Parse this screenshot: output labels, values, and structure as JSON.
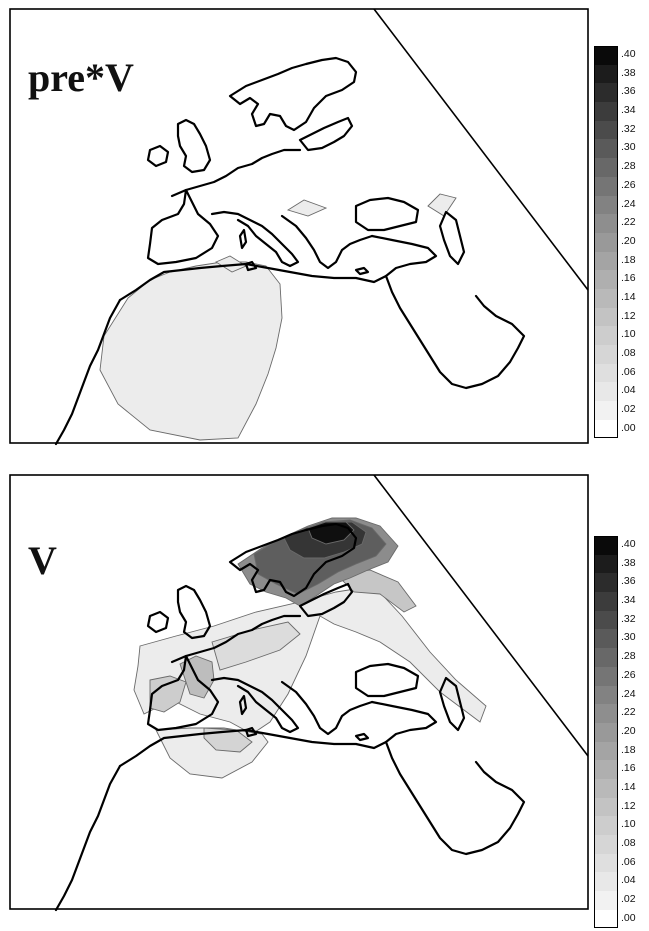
{
  "panels": [
    {
      "title": "pre*V",
      "legend": {
        "ticks": [
          ".40",
          ".38",
          ".36",
          ".34",
          ".32",
          ".30",
          ".28",
          ".26",
          ".24",
          ".22",
          ".20",
          ".18",
          ".16",
          ".14",
          ".12",
          ".10",
          ".08",
          ".06",
          ".04",
          ".02",
          ".00"
        ],
        "colors": [
          "#0a0a0a",
          "#1c1c1c",
          "#2c2c2c",
          "#3c3c3c",
          "#4b4b4b",
          "#5a5a5a",
          "#686868",
          "#757575",
          "#828282",
          "#8e8e8e",
          "#999999",
          "#a4a4a4",
          "#afafaf",
          "#b9b9b9",
          "#c3c3c3",
          "#cdcdcd",
          "#d6d6d6",
          "#dfdfdf",
          "#e8e8e8",
          "#f2f2f2",
          "#ffffff"
        ]
      }
    },
    {
      "title": "V",
      "legend": {
        "ticks": [
          ".40",
          ".38",
          ".36",
          ".34",
          ".32",
          ".30",
          ".28",
          ".26",
          ".24",
          ".22",
          ".20",
          ".18",
          ".16",
          ".14",
          ".12",
          ".10",
          ".08",
          ".06",
          ".04",
          ".02",
          ".00"
        ],
        "colors": [
          "#0a0a0a",
          "#1c1c1c",
          "#2c2c2c",
          "#3c3c3c",
          "#4b4b4b",
          "#5a5a5a",
          "#686868",
          "#757575",
          "#828282",
          "#8e8e8e",
          "#999999",
          "#a4a4a4",
          "#afafaf",
          "#b9b9b9",
          "#c3c3c3",
          "#cdcdcd",
          "#d6d6d6",
          "#dfdfdf",
          "#e8e8e8",
          "#f2f2f2",
          "#ffffff"
        ]
      }
    }
  ]
}
